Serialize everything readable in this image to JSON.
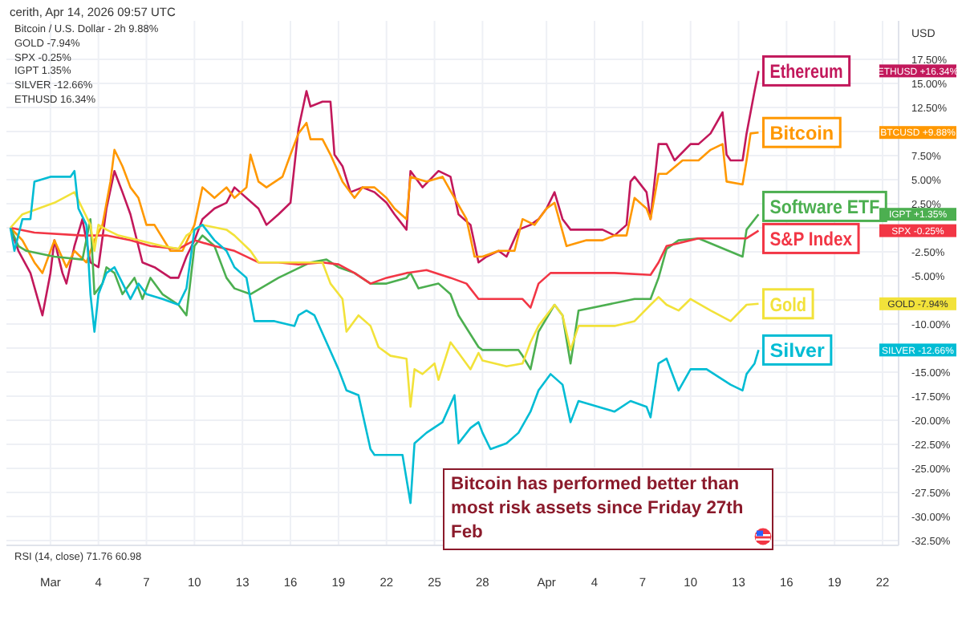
{
  "chart_data": {
    "type": "line",
    "ylabel": "USD",
    "annotations": [
      "cerith, Apr 14, 2026 09:57 UTC",
      "Bitcoin / U.S. Dollar - 2h 9.88%",
      "GOLD -7.94%",
      "SPX -0.25%",
      "IGPT 1.35%",
      "SILVER -12.66%",
      "ETHUSD 16.34%",
      "RSI (14, close) 71.76 60.98",
      "Bitcoin has performed better than most risk assets since Friday 27th Feb",
      "ETHUSD +16.34%",
      "BTCUSD +9.88%",
      "IGPT +1.35%",
      "SPX -0.25%",
      "GOLD -7.94%",
      "SILVER -12.66%"
    ],
    "xlim": [
      "2026-02-26T06:00",
      "2026-04-23T00:00"
    ],
    "xticks": [
      {
        "value": "2026-03-01",
        "label": "Mar"
      },
      {
        "value": "2026-03-04",
        "label": "4"
      },
      {
        "value": "2026-03-07",
        "label": "7"
      },
      {
        "value": "2026-03-10",
        "label": "10"
      },
      {
        "value": "2026-03-13",
        "label": "13"
      },
      {
        "value": "2026-03-16",
        "label": "16"
      },
      {
        "value": "2026-03-19",
        "label": "19"
      },
      {
        "value": "2026-03-22",
        "label": "22"
      },
      {
        "value": "2026-03-25",
        "label": "25"
      },
      {
        "value": "2026-03-28",
        "label": "28"
      },
      {
        "value": "2026-04-01",
        "label": "Apr"
      },
      {
        "value": "2026-04-04",
        "label": "4"
      },
      {
        "value": "2026-04-07",
        "label": "7"
      },
      {
        "value": "2026-04-10",
        "label": "10"
      },
      {
        "value": "2026-04-13",
        "label": "13"
      },
      {
        "value": "2026-04-16",
        "label": "16"
      },
      {
        "value": "2026-04-19",
        "label": "19"
      },
      {
        "value": "2026-04-22",
        "label": "22"
      }
    ],
    "ylim": [
      -33,
      21.5
    ],
    "yticks": [
      {
        "value": 17.5,
        "label": "17.50%"
      },
      {
        "value": 15,
        "label": "15.00%"
      },
      {
        "value": 12.5,
        "label": "12.50%"
      },
      {
        "value": 10,
        "label": null
      },
      {
        "value": 7.5,
        "label": "7.50%"
      },
      {
        "value": 5,
        "label": "5.00%"
      },
      {
        "value": 2.5,
        "label": "2.50%"
      },
      {
        "value": 0,
        "label": null
      },
      {
        "value": -2.5,
        "label": "-2.50%"
      },
      {
        "value": -5,
        "label": "-5.00%"
      },
      {
        "value": -7.5,
        "label": null
      },
      {
        "value": -10,
        "label": "-10.00%"
      },
      {
        "value": -12.5,
        "label": null
      },
      {
        "value": -15,
        "label": "-15.00%"
      },
      {
        "value": -17.5,
        "label": "-17.50%"
      },
      {
        "value": -20,
        "label": "-20.00%"
      },
      {
        "value": -22.5,
        "label": "-22.50%"
      },
      {
        "value": -25,
        "label": "-25.00%"
      },
      {
        "value": -27.5,
        "label": "-27.50%"
      },
      {
        "value": -30,
        "label": "-30.00%"
      },
      {
        "value": -32.5,
        "label": "-32.50%"
      }
    ],
    "grid": true,
    "legend": "right",
    "marker": "none",
    "line_style": "solid",
    "series": [
      {
        "name": "Ethereum",
        "color": "#c2185b",
        "x": [
          "2026-02-26T12:00",
          "2026-02-27T00:00",
          "2026-02-27T18:00",
          "2026-02-28T12:00",
          "2026-03-01T00:00",
          "2026-03-01T06:00",
          "2026-03-01T18:00",
          "2026-03-02T00:00",
          "2026-03-02T12:00",
          "2026-03-03T00:00",
          "2026-03-03T12:00",
          "2026-03-04T00:00",
          "2026-03-04T12:00",
          "2026-03-05T00:00",
          "2026-03-05T12:00",
          "2026-03-06T00:00",
          "2026-03-06T18:00",
          "2026-03-07T12:00",
          "2026-03-08T12:00",
          "2026-03-09T00:00",
          "2026-03-09T12:00",
          "2026-03-10T00:00",
          "2026-03-10T12:00",
          "2026-03-11T06:00",
          "2026-03-12T00:00",
          "2026-03-12T12:00",
          "2026-03-14T00:00",
          "2026-03-14T12:00",
          "2026-03-15T06:00",
          "2026-03-16T00:00",
          "2026-03-16T12:00",
          "2026-03-17T00:00",
          "2026-03-17T06:00",
          "2026-03-18T00:00",
          "2026-03-18T12:00",
          "2026-03-18T18:00",
          "2026-03-19T06:00",
          "2026-03-19T18:00",
          "2026-03-20T12:00",
          "2026-03-21T06:00",
          "2026-03-22T00:00",
          "2026-03-22T12:00",
          "2026-03-23T06:00",
          "2026-03-23T12:00",
          "2026-03-24T06:00",
          "2026-03-25T06:00",
          "2026-03-26T00:00",
          "2026-03-26T12:00",
          "2026-03-27T06:00",
          "2026-03-27T18:00",
          "2026-03-28T06:00",
          "2026-03-29T00:00",
          "2026-03-29T12:00",
          "2026-03-30T06:00",
          "2026-03-31T00:00",
          "2026-03-31T12:00",
          "2026-04-01T00:00",
          "2026-04-01T12:00",
          "2026-04-02T00:00",
          "2026-04-02T12:00",
          "2026-04-03T12:00",
          "2026-04-04T12:00",
          "2026-04-05T06:00",
          "2026-04-06T00:00",
          "2026-04-06T06:00",
          "2026-04-06T12:00",
          "2026-04-07T06:00",
          "2026-04-07T12:00",
          "2026-04-08T00:00",
          "2026-04-08T12:00",
          "2026-04-09T00:00",
          "2026-04-10T00:00",
          "2026-04-10T12:00",
          "2026-04-11T06:00",
          "2026-04-12T00:00",
          "2026-04-12T06:00",
          "2026-04-12T12:00",
          "2026-04-13T06:00",
          "2026-04-13T12:00",
          "2026-04-14T00:00",
          "2026-04-14T06:00"
        ],
        "values": [
          0,
          -2.4,
          -4.7,
          -9.1,
          -4.7,
          -1.3,
          -4.7,
          -5.8,
          -1.9,
          0.9,
          -3.6,
          -4.1,
          2.0,
          5.9,
          3.7,
          1.4,
          -3.6,
          -4.1,
          -5.2,
          -5.2,
          -3.0,
          -1.3,
          0.9,
          2.0,
          2.6,
          4.2,
          2.0,
          0.3,
          1.4,
          2.6,
          10.3,
          14.2,
          12.6,
          13.1,
          13.1,
          7.6,
          6.4,
          3.7,
          4.2,
          3.7,
          2.6,
          1.4,
          -0.2,
          5.9,
          4.2,
          5.9,
          5.3,
          1.4,
          0.3,
          -3.6,
          -3.0,
          -2.4,
          -3.0,
          -0.2,
          0.3,
          0.9,
          2.0,
          3.7,
          0.9,
          -0.2,
          -0.2,
          -0.2,
          -0.8,
          0.3,
          4.8,
          5.3,
          3.7,
          0.9,
          8.7,
          8.7,
          7.0,
          8.7,
          8.7,
          9.8,
          12.0,
          7.6,
          7.0,
          7.0,
          9.8,
          14.2,
          16.3
        ]
      },
      {
        "name": "Bitcoin",
        "color": "#ff9800",
        "x": [
          "2026-02-26T12:00",
          "2026-02-27T06:00",
          "2026-02-28T00:00",
          "2026-02-28T12:00",
          "2026-03-01T06:00",
          "2026-03-02T00:00",
          "2026-03-02T12:00",
          "2026-03-03T06:00",
          "2026-03-03T18:00",
          "2026-03-04T06:00",
          "2026-03-04T18:00",
          "2026-03-05T00:00",
          "2026-03-05T12:00",
          "2026-03-06T00:00",
          "2026-03-06T12:00",
          "2026-03-07T00:00",
          "2026-03-07T12:00",
          "2026-03-08T12:00",
          "2026-03-09T06:00",
          "2026-03-10T00:00",
          "2026-03-10T12:00",
          "2026-03-11T06:00",
          "2026-03-12T00:00",
          "2026-03-12T12:00",
          "2026-03-13T06:00",
          "2026-03-13T12:00",
          "2026-03-14T00:00",
          "2026-03-14T12:00",
          "2026-03-15T12:00",
          "2026-03-16T00:00",
          "2026-03-16T12:00",
          "2026-03-17T00:00",
          "2026-03-17T06:00",
          "2026-03-18T00:00",
          "2026-03-18T12:00",
          "2026-03-19T06:00",
          "2026-03-20T00:00",
          "2026-03-20T12:00",
          "2026-03-21T06:00",
          "2026-03-22T00:00",
          "2026-03-22T12:00",
          "2026-03-23T06:00",
          "2026-03-23T12:00",
          "2026-03-24T12:00",
          "2026-03-25T12:00",
          "2026-03-26T06:00",
          "2026-03-27T00:00",
          "2026-03-27T12:00",
          "2026-03-28T00:00",
          "2026-03-29T00:00",
          "2026-03-30T00:00",
          "2026-03-30T12:00",
          "2026-03-31T06:00",
          "2026-04-01T00:00",
          "2026-04-01T12:00",
          "2026-04-02T06:00",
          "2026-04-03T12:00",
          "2026-04-04T12:00",
          "2026-04-05T06:00",
          "2026-04-06T00:00",
          "2026-04-06T12:00",
          "2026-04-07T06:00",
          "2026-04-07T12:00",
          "2026-04-08T00:00",
          "2026-04-08T12:00",
          "2026-04-09T12:00",
          "2026-04-10T12:00",
          "2026-04-11T06:00",
          "2026-04-12T00:00",
          "2026-04-12T06:00",
          "2026-04-13T06:00",
          "2026-04-13T12:00",
          "2026-04-13T18:00",
          "2026-04-14T06:00"
        ],
        "values": [
          0,
          -1.3,
          -3.6,
          -4.7,
          -1.3,
          -4.1,
          -2.4,
          -3.6,
          -1.3,
          0.3,
          4.8,
          8.1,
          6.4,
          4.2,
          3.1,
          0.3,
          0.3,
          -2.4,
          -2.4,
          0.3,
          4.2,
          3.1,
          4.2,
          3.1,
          4.2,
          7.6,
          4.8,
          4.2,
          5.3,
          7.6,
          9.8,
          10.9,
          9.2,
          9.2,
          7.6,
          4.8,
          3.1,
          4.2,
          4.2,
          3.1,
          2.0,
          0.9,
          5.3,
          4.8,
          5.3,
          3.1,
          0.9,
          -3.0,
          -3.0,
          -2.4,
          -2.4,
          0.9,
          0.3,
          2.0,
          2.6,
          -1.9,
          -1.3,
          -1.3,
          -0.8,
          -0.8,
          3.1,
          2.0,
          0.9,
          5.6,
          5.6,
          7.0,
          7.0,
          8.1,
          8.7,
          4.8,
          4.5,
          7.0,
          9.8,
          9.9
        ]
      },
      {
        "name": "Software ETF",
        "color": "#4caf50",
        "x": [
          "2026-02-26T12:00",
          "2026-02-27T00:00",
          "2026-02-27T12:00",
          "2026-03-01T06:00",
          "2026-03-03T00:00",
          "2026-03-03T12:00",
          "2026-03-03T18:00",
          "2026-03-04T06:00",
          "2026-03-04T12:00",
          "2026-03-05T00:00",
          "2026-03-05T12:00",
          "2026-03-06T06:00",
          "2026-03-06T18:00",
          "2026-03-07T06:00",
          "2026-03-08T00:00",
          "2026-03-09T00:00",
          "2026-03-09T12:00",
          "2026-03-10T00:00",
          "2026-03-10T12:00",
          "2026-03-11T06:00",
          "2026-03-12T00:00",
          "2026-03-12T12:00",
          "2026-03-13T12:00",
          "2026-03-15T06:00",
          "2026-03-17T06:00",
          "2026-03-18T06:00",
          "2026-03-19T00:00",
          "2026-03-20T00:00",
          "2026-03-21T00:00",
          "2026-03-22T00:00",
          "2026-03-23T06:00",
          "2026-03-23T12:00",
          "2026-03-24T00:00",
          "2026-03-25T06:00",
          "2026-03-26T00:00",
          "2026-03-26T12:00",
          "2026-03-27T18:00",
          "2026-03-28T00:00",
          "2026-03-30T06:00",
          "2026-03-30T12:00",
          "2026-03-31T00:00",
          "2026-03-31T12:00",
          "2026-04-01T12:00",
          "2026-04-02T00:00",
          "2026-04-02T12:00",
          "2026-04-03T00:00",
          "2026-04-06T12:00",
          "2026-04-07T12:00",
          "2026-04-08T00:00",
          "2026-04-08T12:00",
          "2026-04-09T06:00",
          "2026-04-10T12:00",
          "2026-04-13T06:00",
          "2026-04-13T12:00",
          "2026-04-14T06:00"
        ],
        "values": [
          0,
          -1.9,
          -2.4,
          -3.0,
          -3.3,
          0.9,
          -6.9,
          -5.8,
          -4.1,
          -4.7,
          -6.9,
          -5.2,
          -7.4,
          -5.2,
          -6.9,
          -8.0,
          -9.1,
          -1.9,
          -0.8,
          -1.9,
          -5.2,
          -6.3,
          -6.9,
          -5.2,
          -3.6,
          -3.3,
          -4.1,
          -4.7,
          -5.8,
          -5.8,
          -5.2,
          -4.7,
          -6.3,
          -5.8,
          -6.9,
          -9.1,
          -12.4,
          -12.7,
          -12.7,
          -13.3,
          -14.7,
          -10.8,
          -8.0,
          -9.1,
          -14.1,
          -8.6,
          -7.4,
          -7.4,
          -5.2,
          -2.2,
          -1.3,
          -1.1,
          -3.0,
          -0.2,
          1.4
        ]
      },
      {
        "name": "S&P Index",
        "color": "#f23645",
        "x": [
          "2026-02-26T12:00",
          "2026-02-28T00:00",
          "2026-03-03T00:00",
          "2026-03-04T12:00",
          "2026-03-06T00:00",
          "2026-03-07T06:00",
          "2026-03-09T00:00",
          "2026-03-10T00:00",
          "2026-03-11T06:00",
          "2026-03-12T12:00",
          "2026-03-14T00:00",
          "2026-03-15T06:00",
          "2026-03-16T12:00",
          "2026-03-18T00:00",
          "2026-03-19T00:00",
          "2026-03-20T00:00",
          "2026-03-21T00:00",
          "2026-03-22T00:00",
          "2026-03-23T06:00",
          "2026-03-24T12:00",
          "2026-03-26T00:00",
          "2026-03-27T00:00",
          "2026-03-27T18:00",
          "2026-03-28T06:00",
          "2026-03-30T12:00",
          "2026-03-31T00:00",
          "2026-03-31T12:00",
          "2026-04-01T06:00",
          "2026-04-03T06:00",
          "2026-04-05T06:00",
          "2026-04-07T12:00",
          "2026-04-08T00:00",
          "2026-04-08T12:00",
          "2026-04-09T06:00",
          "2026-04-10T12:00",
          "2026-04-12T00:00",
          "2026-04-13T12:00",
          "2026-04-14T06:00"
        ],
        "values": [
          0,
          -0.5,
          -0.8,
          -0.8,
          -1.3,
          -1.9,
          -2.2,
          -1.3,
          -1.9,
          -2.4,
          -3.6,
          -3.6,
          -3.8,
          -3.6,
          -3.8,
          -4.7,
          -5.8,
          -5.2,
          -4.7,
          -4.4,
          -5.2,
          -5.8,
          -7.4,
          -7.4,
          -7.4,
          -8.3,
          -5.8,
          -4.7,
          -4.7,
          -4.7,
          -4.9,
          -3.6,
          -1.9,
          -1.6,
          -1.1,
          -1.1,
          -1.1,
          -0.3
        ]
      },
      {
        "name": "Gold",
        "color": "#f2e23a",
        "x": [
          "2026-02-26T12:00",
          "2026-02-27T06:00",
          "2026-02-28T06:00",
          "2026-03-01T06:00",
          "2026-03-02T12:00",
          "2026-03-03T00:00",
          "2026-03-03T12:00",
          "2026-03-03T18:00",
          "2026-03-04T00:00",
          "2026-03-04T12:00",
          "2026-03-05T06:00",
          "2026-03-06T12:00",
          "2026-03-08T00:00",
          "2026-03-09T00:00",
          "2026-03-09T12:00",
          "2026-03-10T12:00",
          "2026-03-12T00:00",
          "2026-03-12T12:00",
          "2026-03-13T12:00",
          "2026-03-14T00:00",
          "2026-03-15T06:00",
          "2026-03-16T12:00",
          "2026-03-18T00:00",
          "2026-03-18T12:00",
          "2026-03-19T06:00",
          "2026-03-19T12:00",
          "2026-03-20T06:00",
          "2026-03-21T00:00",
          "2026-03-21T12:00",
          "2026-03-22T06:00",
          "2026-03-23T06:00",
          "2026-03-23T12:00",
          "2026-03-23T18:00",
          "2026-03-24T06:00",
          "2026-03-25T00:00",
          "2026-03-25T06:00",
          "2026-03-26T00:00",
          "2026-03-26T12:00",
          "2026-03-27T06:00",
          "2026-03-27T18:00",
          "2026-03-28T00:00",
          "2026-03-29T12:00",
          "2026-03-30T12:00",
          "2026-03-31T00:00",
          "2026-03-31T12:00",
          "2026-04-01T12:00",
          "2026-04-02T00:00",
          "2026-04-02T12:00",
          "2026-04-03T00:00",
          "2026-04-05T06:00",
          "2026-04-06T12:00",
          "2026-04-07T12:00",
          "2026-04-08T00:00",
          "2026-04-08T12:00",
          "2026-04-09T06:00",
          "2026-04-10T00:00",
          "2026-04-11T06:00",
          "2026-04-12T12:00",
          "2026-04-13T12:00",
          "2026-04-14T06:00"
        ],
        "values": [
          0,
          1.4,
          2.0,
          2.6,
          3.7,
          2.0,
          0.3,
          -2.4,
          0.3,
          -0.2,
          -0.8,
          -1.3,
          -1.9,
          -2.2,
          -0.8,
          0.3,
          -0.2,
          -0.8,
          -2.4,
          -3.6,
          -3.6,
          -3.6,
          -3.6,
          -5.8,
          -7.4,
          -10.8,
          -9.1,
          -10.2,
          -12.4,
          -13.3,
          -13.6,
          -18.6,
          -14.7,
          -15.2,
          -14.1,
          -15.8,
          -11.9,
          -13.0,
          -14.7,
          -13.0,
          -13.8,
          -14.4,
          -14.1,
          -11.9,
          -10.2,
          -8.0,
          -9.1,
          -12.7,
          -10.2,
          -10.2,
          -9.7,
          -8.0,
          -7.2,
          -8.0,
          -8.6,
          -7.4,
          -8.6,
          -9.7,
          -8.0,
          -7.9
        ]
      },
      {
        "name": "Silver",
        "color": "#00bcd4",
        "x": [
          "2026-02-26T12:00",
          "2026-02-26T18:00",
          "2026-02-27T06:00",
          "2026-02-27T18:00",
          "2026-02-28T00:00",
          "2026-03-01T00:00",
          "2026-03-02T06:00",
          "2026-03-02T12:00",
          "2026-03-02T18:00",
          "2026-03-03T06:00",
          "2026-03-03T12:00",
          "2026-03-03T18:00",
          "2026-03-04T00:00",
          "2026-03-04T12:00",
          "2026-03-05T00:00",
          "2026-03-06T00:00",
          "2026-03-06T12:00",
          "2026-03-07T00:00",
          "2026-03-08T00:00",
          "2026-03-09T00:00",
          "2026-03-09T12:00",
          "2026-03-10T00:00",
          "2026-03-10T12:00",
          "2026-03-11T06:00",
          "2026-03-12T00:00",
          "2026-03-12T12:00",
          "2026-03-13T06:00",
          "2026-03-13T18:00",
          "2026-03-15T00:00",
          "2026-03-16T06:00",
          "2026-03-16T12:00",
          "2026-03-17T00:00",
          "2026-03-17T12:00",
          "2026-03-18T06:00",
          "2026-03-19T00:00",
          "2026-03-19T12:00",
          "2026-03-20T06:00",
          "2026-03-21T00:00",
          "2026-03-21T06:00",
          "2026-03-23T00:00",
          "2026-03-23T12:00",
          "2026-03-23T18:00",
          "2026-03-24T12:00",
          "2026-03-25T12:00",
          "2026-03-26T06:00",
          "2026-03-26T12:00",
          "2026-03-27T06:00",
          "2026-03-27T18:00",
          "2026-03-28T00:00",
          "2026-03-28T12:00",
          "2026-03-29T12:00",
          "2026-03-30T06:00",
          "2026-03-31T00:00",
          "2026-03-31T12:00",
          "2026-04-01T06:00",
          "2026-04-02T00:00",
          "2026-04-02T12:00",
          "2026-04-03T00:00",
          "2026-04-05T06:00",
          "2026-04-06T06:00",
          "2026-04-07T06:00",
          "2026-04-07T12:00",
          "2026-04-08T00:00",
          "2026-04-08T12:00",
          "2026-04-09T06:00",
          "2026-04-10T00:00",
          "2026-04-11T00:00",
          "2026-04-12T12:00",
          "2026-04-13T06:00",
          "2026-04-13T12:00",
          "2026-04-14T00:00",
          "2026-04-14T06:00"
        ],
        "values": [
          0,
          -2.4,
          0.9,
          0.9,
          4.8,
          5.3,
          5.3,
          5.9,
          2.0,
          0.3,
          -6.9,
          -10.8,
          -6.9,
          -4.7,
          -4.1,
          -7.4,
          -5.8,
          -6.9,
          -7.4,
          -8.0,
          -6.3,
          -0.2,
          0.3,
          -1.3,
          -2.4,
          -4.1,
          -5.2,
          -9.7,
          -9.7,
          -10.2,
          -9.1,
          -8.6,
          -9.1,
          -11.9,
          -14.7,
          -16.9,
          -17.4,
          -23.0,
          -23.6,
          -23.6,
          -28.6,
          -22.4,
          -21.3,
          -20.2,
          -17.4,
          -22.4,
          -20.8,
          -20.2,
          -21.3,
          -23.0,
          -22.4,
          -21.3,
          -19.1,
          -16.9,
          -15.2,
          -16.3,
          -20.2,
          -18.0,
          -19.1,
          -18.0,
          -18.6,
          -19.7,
          -14.1,
          -13.6,
          -16.9,
          -14.7,
          -14.7,
          -16.3,
          -16.9,
          -15.2,
          -14.1,
          -12.7
        ]
      }
    ]
  }
}
